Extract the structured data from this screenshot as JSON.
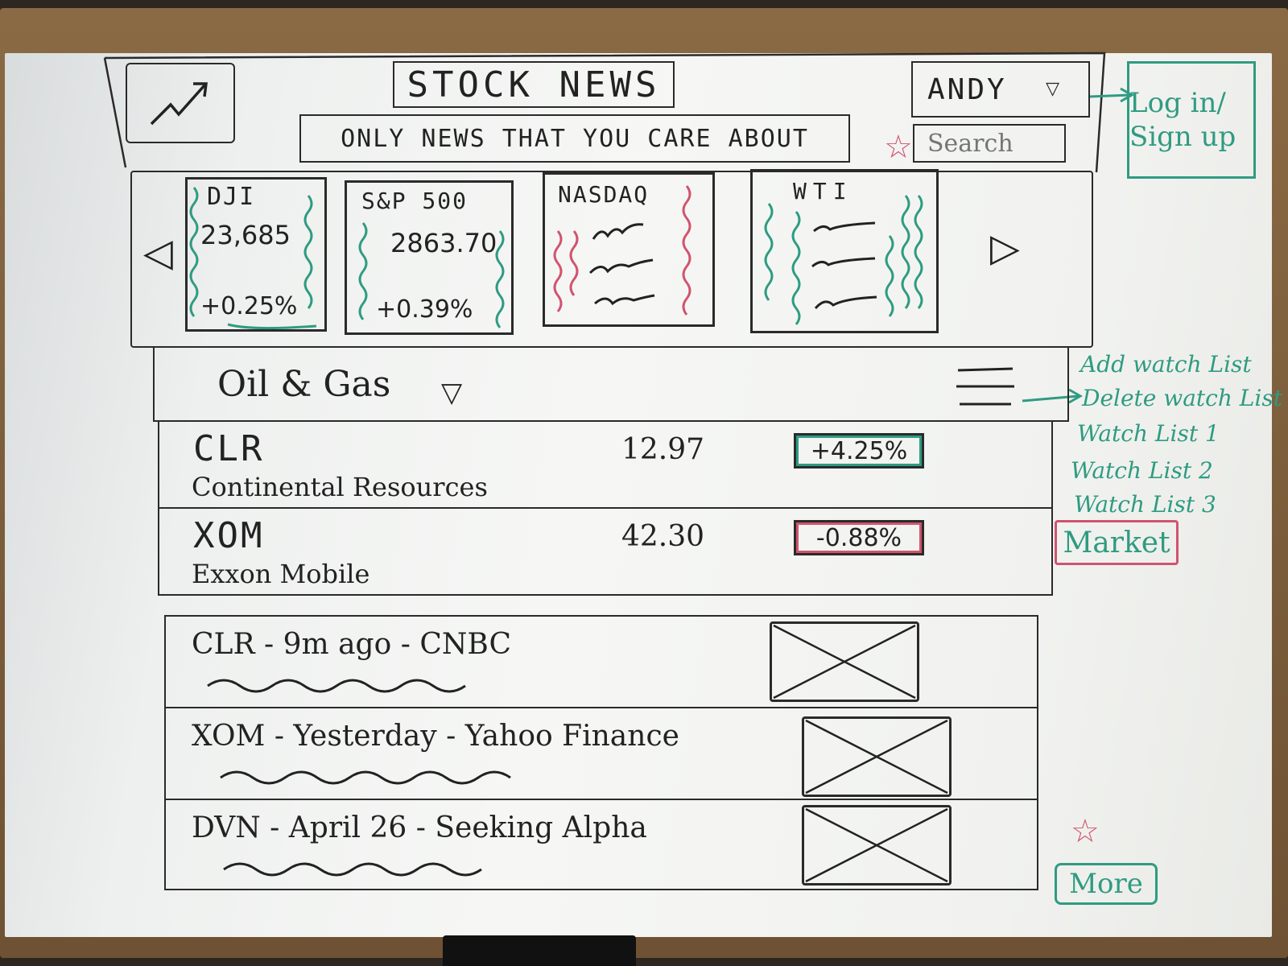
{
  "header": {
    "title": "STOCK NEWS",
    "tagline": "ONLY NEWS THAT YOU CARE ABOUT",
    "user": "ANDY",
    "search_placeholder": "Search",
    "login": "Log in/ Sign up"
  },
  "tickers": [
    {
      "name": "DJI",
      "value": "23,685",
      "change": "+0.25%",
      "color": "#2f9b82"
    },
    {
      "name": "S&P 500",
      "value": "2863.70",
      "change": "+0.39%",
      "color": "#2f9b82"
    },
    {
      "name": "NASDAQ",
      "value": "",
      "change": "",
      "color": "#d0546e"
    },
    {
      "name": "WTI",
      "value": "",
      "change": "",
      "color": "#2f9b82"
    }
  ],
  "watchlist": {
    "title": "Oil & Gas",
    "menu": [
      "Add watch List",
      "Delete watch List",
      "Watch List 1",
      "Watch List 2",
      "Watch List 3",
      "Market"
    ]
  },
  "stocks": [
    {
      "symbol": "CLR",
      "name": "Continental Resources",
      "price": "12.97",
      "change": "+4.25%",
      "color": "#2f9b82"
    },
    {
      "symbol": "XOM",
      "name": "Exxon Mobile",
      "price": "42.30",
      "change": "-0.88%",
      "color": "#d0546e"
    }
  ],
  "news": [
    {
      "headline": "CLR - 9m ago - CNBC"
    },
    {
      "headline": "XOM - Yesterday - Yahoo Finance"
    },
    {
      "headline": "DVN - April 26 - Seeking Alpha"
    }
  ],
  "more": "More",
  "colors": {
    "green": "#2f9b82",
    "red": "#d0546e",
    "ink": "#262626"
  }
}
